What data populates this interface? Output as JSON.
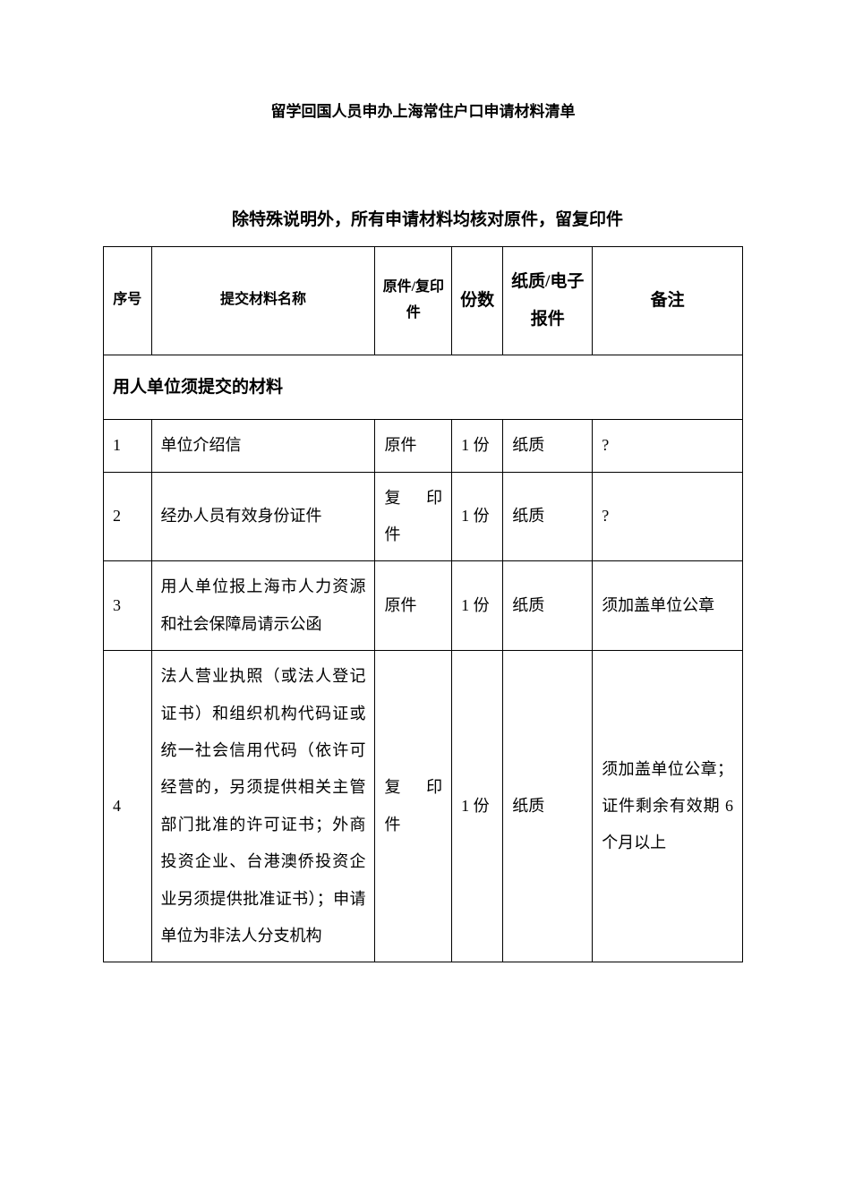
{
  "title": "留学回国人员申办上海常住户口申请材料清单",
  "title_fontsize": 17,
  "subtitle": "除特殊说明外，所有申请材料均核对原件，留复印件",
  "subtitle_fontsize": 19,
  "body_fontsize": 18,
  "text_color": "#000000",
  "background_color": "#ffffff",
  "border_color": "#000000",
  "border_width": 1.5,
  "line_height": 2.3,
  "table": {
    "columns": [
      {
        "key": "seq",
        "label": "序号",
        "width_pct": 7.5
      },
      {
        "key": "name",
        "label": "提交材料名称",
        "width_pct": 35
      },
      {
        "key": "orig",
        "label": "原件/复印件",
        "width_pct": 12
      },
      {
        "key": "qty",
        "label": "份数",
        "width_pct": 8
      },
      {
        "key": "fmt",
        "label": "纸质/电子报件",
        "width_pct": 14
      },
      {
        "key": "note",
        "label": "备注",
        "width_pct": 23.5
      }
    ],
    "section_header": "用人单位须提交的材料",
    "rows": [
      {
        "seq": "1",
        "name": "单位介绍信",
        "orig": "原件",
        "qty": "1 份",
        "fmt": "纸质",
        "note": "?"
      },
      {
        "seq": "2",
        "name": "经办人员有效身份证件",
        "orig": "复　印件",
        "qty": "1 份",
        "fmt": "纸质",
        "note": "?"
      },
      {
        "seq": "3",
        "name": "用人单位报上海市人力资源和社会保障局请示公函",
        "orig": "原件",
        "qty": "1 份",
        "fmt": "纸质",
        "note": "须加盖单位公章"
      },
      {
        "seq": "4",
        "name": "法人营业执照（或法人登记证书）和组织机构代码证或统一社会信用代码（依许可经营的，另须提供相关主管部门批准的许可证书；外商投资企业、台港澳侨投资企业另须提供批准证书）；申请单位为非法人分支机构",
        "orig": "复　印件",
        "qty": "1 份",
        "fmt": "纸质",
        "note": "须加盖单位公章；证件剩余有效期 6 个月以上"
      }
    ]
  }
}
